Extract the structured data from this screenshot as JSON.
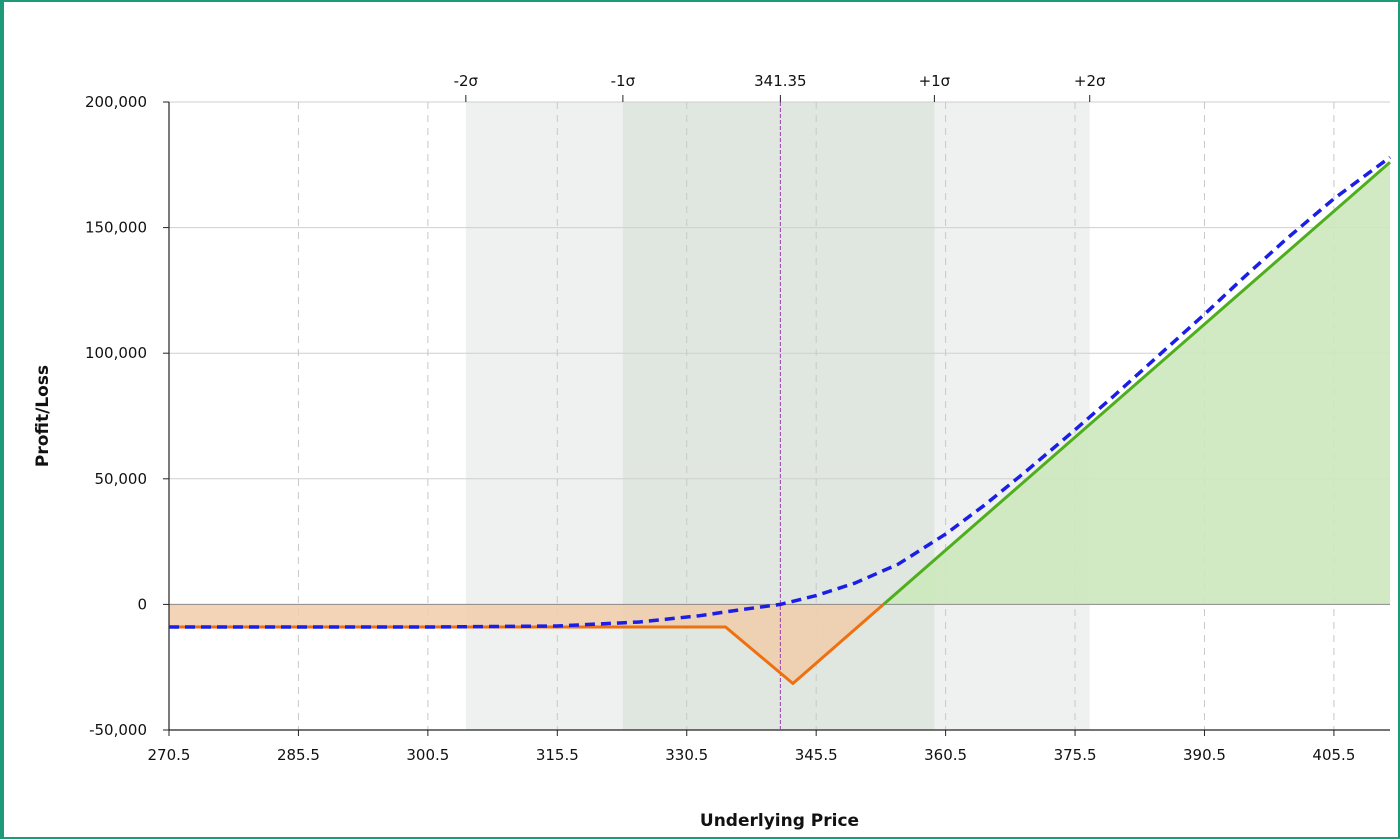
{
  "chart_data": {
    "type": "area",
    "title": "",
    "xlabel": "Underlying Price",
    "ylabel": "Profit/Loss",
    "xlim": [
      270.5,
      412.0
    ],
    "ylim": [
      -50000,
      200000
    ],
    "x_ticks": [
      {
        "value": 270.5,
        "label": "270.5"
      },
      {
        "value": 285.5,
        "label": "285.5"
      },
      {
        "value": 300.5,
        "label": "300.5"
      },
      {
        "value": 315.5,
        "label": "315.5"
      },
      {
        "value": 330.5,
        "label": "330.5"
      },
      {
        "value": 345.5,
        "label": "345.5"
      },
      {
        "value": 360.5,
        "label": "360.5"
      },
      {
        "value": 375.5,
        "label": "375.5"
      },
      {
        "value": 390.5,
        "label": "390.5"
      },
      {
        "value": 405.5,
        "label": "405.5"
      }
    ],
    "y_ticks": [
      {
        "value": 200000,
        "label": "200,000"
      },
      {
        "value": 150000,
        "label": "150,000"
      },
      {
        "value": 100000,
        "label": "100,000"
      },
      {
        "value": 50000,
        "label": "50,000"
      },
      {
        "value": 0,
        "label": "0"
      },
      {
        "value": -50000,
        "label": "-50,000"
      }
    ],
    "top_markers": [
      {
        "value": 304.9,
        "label": "-2σ"
      },
      {
        "value": 323.1,
        "label": "-1σ"
      },
      {
        "value": 341.35,
        "label": "341.35"
      },
      {
        "value": 359.2,
        "label": "+1σ"
      },
      {
        "value": 377.2,
        "label": "+2σ"
      }
    ],
    "bands": [
      {
        "from": 304.9,
        "to": 377.2,
        "color": "#eef1ef"
      },
      {
        "from": 323.1,
        "to": 359.2,
        "color": "#dfe7e0"
      }
    ],
    "current_price": 341.35,
    "series": [
      {
        "style": "solid",
        "color": "#ee7011",
        "positive_color": "#4fae1d",
        "points": [
          {
            "x": 270.5,
            "y": -9000
          },
          {
            "x": 335.0,
            "y": -9000
          },
          {
            "x": 342.8,
            "y": -31500
          },
          {
            "x": 353.3,
            "y": 0
          },
          {
            "x": 412.0,
            "y": 176000
          }
        ]
      },
      {
        "style": "dashed",
        "color": "#1a1ee6",
        "points": [
          {
            "x": 270.5,
            "y": -9000
          },
          {
            "x": 300.5,
            "y": -9000
          },
          {
            "x": 315.5,
            "y": -8600
          },
          {
            "x": 325.0,
            "y": -7000
          },
          {
            "x": 332.0,
            "y": -4500
          },
          {
            "x": 337.0,
            "y": -2000
          },
          {
            "x": 341.35,
            "y": 0
          },
          {
            "x": 345.5,
            "y": 3500
          },
          {
            "x": 350.0,
            "y": 8500
          },
          {
            "x": 355.0,
            "y": 16000
          },
          {
            "x": 360.5,
            "y": 28000
          },
          {
            "x": 365.0,
            "y": 39500
          },
          {
            "x": 370.0,
            "y": 53500
          },
          {
            "x": 375.5,
            "y": 69500
          },
          {
            "x": 380.0,
            "y": 83000
          },
          {
            "x": 385.0,
            "y": 98500
          },
          {
            "x": 390.5,
            "y": 115500
          },
          {
            "x": 395.0,
            "y": 130000
          },
          {
            "x": 400.0,
            "y": 145500
          },
          {
            "x": 405.5,
            "y": 161500
          },
          {
            "x": 412.0,
            "y": 178000
          }
        ]
      }
    ],
    "fill_colors": {
      "loss": "#f1ccaa",
      "profit": "#cce8bd"
    },
    "grid": true
  }
}
